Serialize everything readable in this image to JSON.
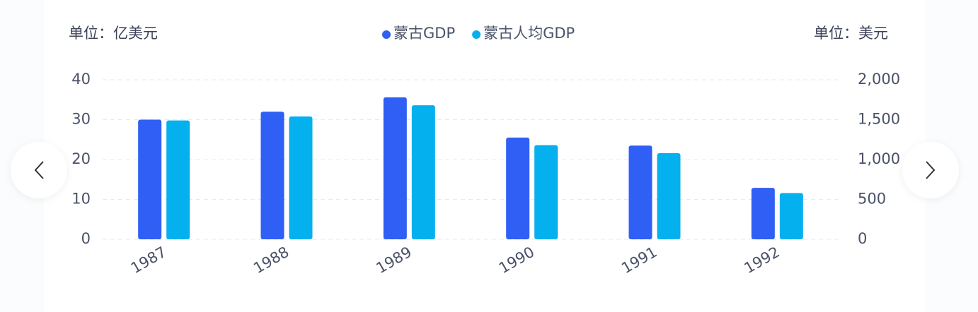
{
  "chart_data": {
    "type": "bar",
    "y_label": "单位：亿美元",
    "y2_label": "单位：美元",
    "categories": [
      "1987",
      "1988",
      "1989",
      "1990",
      "1991",
      "1992"
    ],
    "series": [
      {
        "name": "蒙古GDP",
        "color": "#2f5ff5",
        "values": [
          30,
          32,
          35.6,
          25.5,
          23.5,
          12.9
        ]
      },
      {
        "name": "蒙古人均GDP",
        "color": "#05b0ef",
        "axis": "y2",
        "values": [
          1490,
          1540,
          1680,
          1180,
          1080,
          580
        ]
      }
    ],
    "ylim": [
      0,
      40
    ],
    "yticks": [
      0,
      10,
      20,
      30,
      40
    ],
    "y2lim": [
      0,
      2000
    ],
    "y2ticks": [
      0,
      500,
      {
        "value": 1000,
        "label": "1,000"
      },
      {
        "value": 1500,
        "label": "1,500"
      },
      {
        "value": 2000,
        "label": "2,000"
      }
    ],
    "grid": true,
    "legend": "top"
  }
}
